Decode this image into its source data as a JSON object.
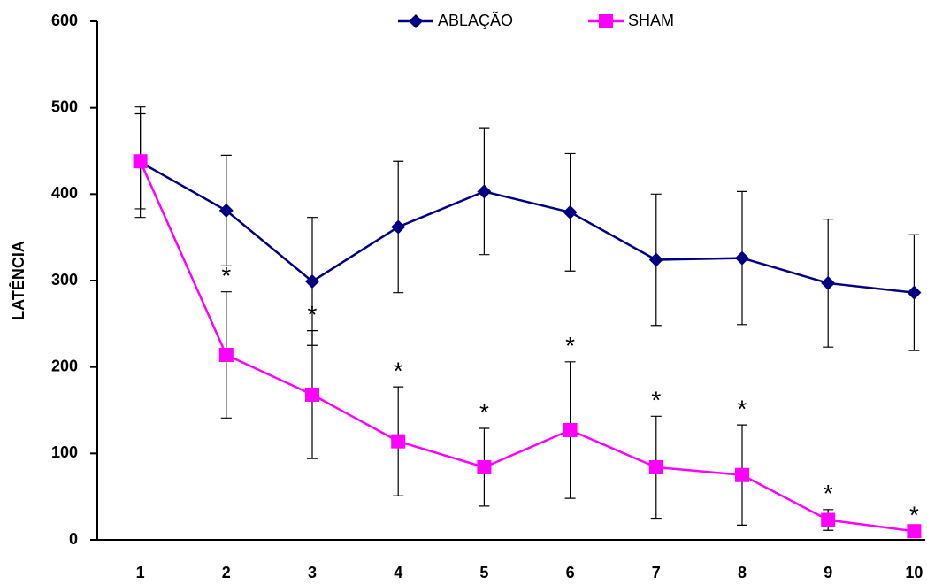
{
  "chart_data": {
    "type": "line",
    "y_label": "LATÊNCIA",
    "categories": [
      "1",
      "2",
      "3",
      "4",
      "5",
      "6",
      "7",
      "8",
      "9",
      "10"
    ],
    "series": [
      {
        "name": "ABLAÇÃO",
        "color": "#000080",
        "marker": "diamond",
        "values": [
          437,
          381,
          299,
          362,
          403,
          379,
          324,
          326,
          297,
          286
        ],
        "errors": [
          64,
          64,
          74,
          76,
          73,
          68,
          76,
          77,
          74,
          67
        ]
      },
      {
        "name": "SHAM",
        "color": "#ff00ff",
        "marker": "square",
        "values": [
          438,
          214,
          168,
          114,
          84,
          127,
          84,
          75,
          23,
          10
        ],
        "errors": [
          55,
          73,
          74,
          63,
          45,
          79,
          59,
          58,
          12,
          0
        ]
      }
    ],
    "annotations": [
      null,
      "*",
      "*",
      "*",
      "*",
      "*",
      "*",
      "*",
      "*",
      "*"
    ],
    "ylim": [
      0,
      600
    ],
    "yticks": [
      0,
      100,
      200,
      300,
      400,
      500,
      600
    ],
    "legend": "top"
  }
}
